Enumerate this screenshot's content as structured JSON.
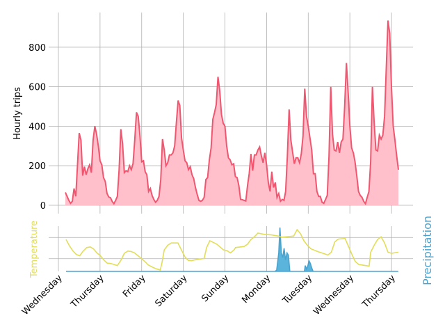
{
  "chart_data": [
    {
      "type": "area",
      "ylabel": "Hourly trips",
      "xlabel": "",
      "ylim": [
        0,
        975
      ],
      "yticks": [
        0,
        200,
        400,
        600,
        800
      ],
      "x_unit": "hours since first Wednesday 00:00",
      "series": [
        {
          "name": "Hourly trips",
          "start_hour": 4,
          "step_hours": 1,
          "values": [
            65,
            45,
            25,
            10,
            20,
            85,
            45,
            200,
            365,
            330,
            150,
            195,
            155,
            185,
            205,
            165,
            330,
            400,
            360,
            300,
            225,
            205,
            140,
            120,
            60,
            42,
            38,
            20,
            8,
            25,
            45,
            180,
            385,
            310,
            165,
            175,
            170,
            200,
            180,
            210,
            330,
            470,
            450,
            350,
            220,
            225,
            170,
            155,
            70,
            85,
            50,
            30,
            15,
            25,
            45,
            130,
            335,
            280,
            200,
            215,
            255,
            255,
            265,
            300,
            420,
            530,
            505,
            340,
            280,
            225,
            215,
            180,
            195,
            155,
            135,
            90,
            55,
            25,
            20,
            25,
            40,
            130,
            140,
            230,
            290,
            435,
            470,
            510,
            650,
            580,
            460,
            415,
            400,
            300,
            240,
            230,
            205,
            210,
            145,
            140,
            100,
            30,
            28,
            25,
            22,
            100,
            160,
            260,
            175,
            255,
            255,
            280,
            295,
            250,
            215,
            265,
            205,
            115,
            70,
            170,
            90,
            115,
            40,
            60,
            20,
            30,
            25,
            70,
            250,
            485,
            330,
            270,
            210,
            240,
            240,
            215,
            260,
            350,
            590,
            450,
            400,
            340,
            280,
            160,
            160,
            70,
            45,
            45,
            15,
            10,
            30,
            50,
            250,
            600,
            360,
            280,
            275,
            320,
            265,
            320,
            335,
            500,
            720,
            570,
            400,
            290,
            265,
            220,
            150,
            70,
            50,
            40,
            20,
            8,
            40,
            70,
            220,
            600,
            420,
            280,
            275,
            355,
            335,
            355,
            450,
            700,
            935,
            870,
            600,
            400,
            330,
            250,
            180
          ]
        }
      ],
      "colors": {
        "line": "#f0566f",
        "fill": "#ffc0cb"
      }
    },
    {
      "type": "line",
      "ylabel_left": "Temperature",
      "ylabel_right": "Precipitation",
      "ylim": [
        0,
        19
      ],
      "grid_values": [
        5.5,
        14.7
      ],
      "xticks": [
        {
          "hour": 0,
          "label": "Wednesday"
        },
        {
          "hour": 24,
          "label": "Thursday"
        },
        {
          "hour": 48,
          "label": "Friday"
        },
        {
          "hour": 72,
          "label": "Saturday"
        },
        {
          "hour": 96,
          "label": "Sunday"
        },
        {
          "hour": 120,
          "label": "Monday"
        },
        {
          "hour": 144,
          "label": "Tuesday"
        },
        {
          "hour": 168,
          "label": "Wednesday"
        },
        {
          "hour": 192,
          "label": "Thursday"
        }
      ],
      "temperature": [
        [
          4.4,
          13.8
        ],
        [
          6.4,
          11
        ],
        [
          8.4,
          8.8
        ],
        [
          10.4,
          7.3
        ],
        [
          12.3,
          6.8
        ],
        [
          14.3,
          8.8
        ],
        [
          16.3,
          10.3
        ],
        [
          18.3,
          10.6
        ],
        [
          20.2,
          9.8
        ],
        [
          22.2,
          8
        ],
        [
          24.2,
          6.8
        ],
        [
          26.1,
          5
        ],
        [
          28.1,
          3.6
        ],
        [
          30.1,
          3.4
        ],
        [
          32.1,
          3
        ],
        [
          34,
          2.5
        ],
        [
          36,
          4.8
        ],
        [
          38,
          7.8
        ],
        [
          40,
          8.8
        ],
        [
          42,
          8.6
        ],
        [
          43.9,
          8
        ],
        [
          45.9,
          6.8
        ],
        [
          47.9,
          5.5
        ],
        [
          49.8,
          4.3
        ],
        [
          51.8,
          2.8
        ],
        [
          53.8,
          2
        ],
        [
          55.8,
          1.3
        ],
        [
          57.7,
          0.8
        ],
        [
          58.7,
          0.6
        ],
        [
          59.7,
          3.8
        ],
        [
          61,
          9.3
        ],
        [
          63,
          11.3
        ],
        [
          65,
          12.3
        ],
        [
          68.9,
          12.3
        ],
        [
          70.9,
          9.3
        ],
        [
          72.9,
          6.3
        ],
        [
          74.8,
          4.8
        ],
        [
          76.8,
          4.6
        ],
        [
          78.8,
          5
        ],
        [
          82.7,
          5.5
        ],
        [
          84,
          5.6
        ],
        [
          85.4,
          10.3
        ],
        [
          87.3,
          13.3
        ],
        [
          91.3,
          11.8
        ],
        [
          95.2,
          9.3
        ],
        [
          97.2,
          9
        ],
        [
          99.2,
          8
        ],
        [
          101.2,
          9.3
        ],
        [
          102.1,
          10.3
        ],
        [
          107.1,
          10.8
        ],
        [
          109,
          11.8
        ],
        [
          111,
          13.8
        ],
        [
          113,
          15
        ],
        [
          115,
          16.6
        ],
        [
          118.9,
          16
        ],
        [
          122.8,
          15.8
        ],
        [
          126.8,
          15.3
        ],
        [
          128.8,
          14.8
        ],
        [
          132.7,
          15.1
        ],
        [
          135.6,
          15.3
        ],
        [
          137.6,
          18.1
        ],
        [
          139.6,
          16.3
        ],
        [
          141.5,
          13.3
        ],
        [
          143.5,
          11.3
        ],
        [
          145.5,
          9.8
        ],
        [
          149.4,
          8.6
        ],
        [
          153.4,
          7.6
        ],
        [
          155.3,
          7.1
        ],
        [
          157.3,
          8.3
        ],
        [
          159.3,
          12.8
        ],
        [
          161.3,
          14
        ],
        [
          165.2,
          14.3
        ],
        [
          167.2,
          10.8
        ],
        [
          169.2,
          7.3
        ],
        [
          171.1,
          4.3
        ],
        [
          173.1,
          3
        ],
        [
          177.1,
          2.5
        ],
        [
          179.1,
          2.3
        ],
        [
          180,
          8.3
        ],
        [
          182,
          11.3
        ],
        [
          184,
          13.8
        ],
        [
          186,
          15
        ],
        [
          188,
          12.3
        ],
        [
          190,
          8.3
        ],
        [
          192,
          7.8
        ],
        [
          195.9,
          8.3
        ]
      ],
      "precipitation": [
        [
          4.4,
          0
        ],
        [
          124.8,
          0
        ],
        [
          125.8,
          0.5
        ],
        [
          127,
          8
        ],
        [
          127.7,
          19
        ],
        [
          128.5,
          8
        ],
        [
          129.3,
          6
        ],
        [
          130.1,
          10
        ],
        [
          130.9,
          5
        ],
        [
          131.8,
          8
        ],
        [
          132.6,
          7
        ],
        [
          133.4,
          0
        ],
        [
          141.8,
          0
        ],
        [
          142.3,
          2.5
        ],
        [
          143,
          1
        ],
        [
          143.8,
          2.5
        ],
        [
          144.5,
          4.5
        ],
        [
          145.2,
          3.5
        ],
        [
          146,
          1.5
        ],
        [
          146.8,
          0
        ],
        [
          195.9,
          0
        ]
      ],
      "colors": {
        "temperature": "#e2de58",
        "precipitation_line": "#4aa3cf",
        "precipitation_fill": "#5ab4dc"
      }
    }
  ]
}
